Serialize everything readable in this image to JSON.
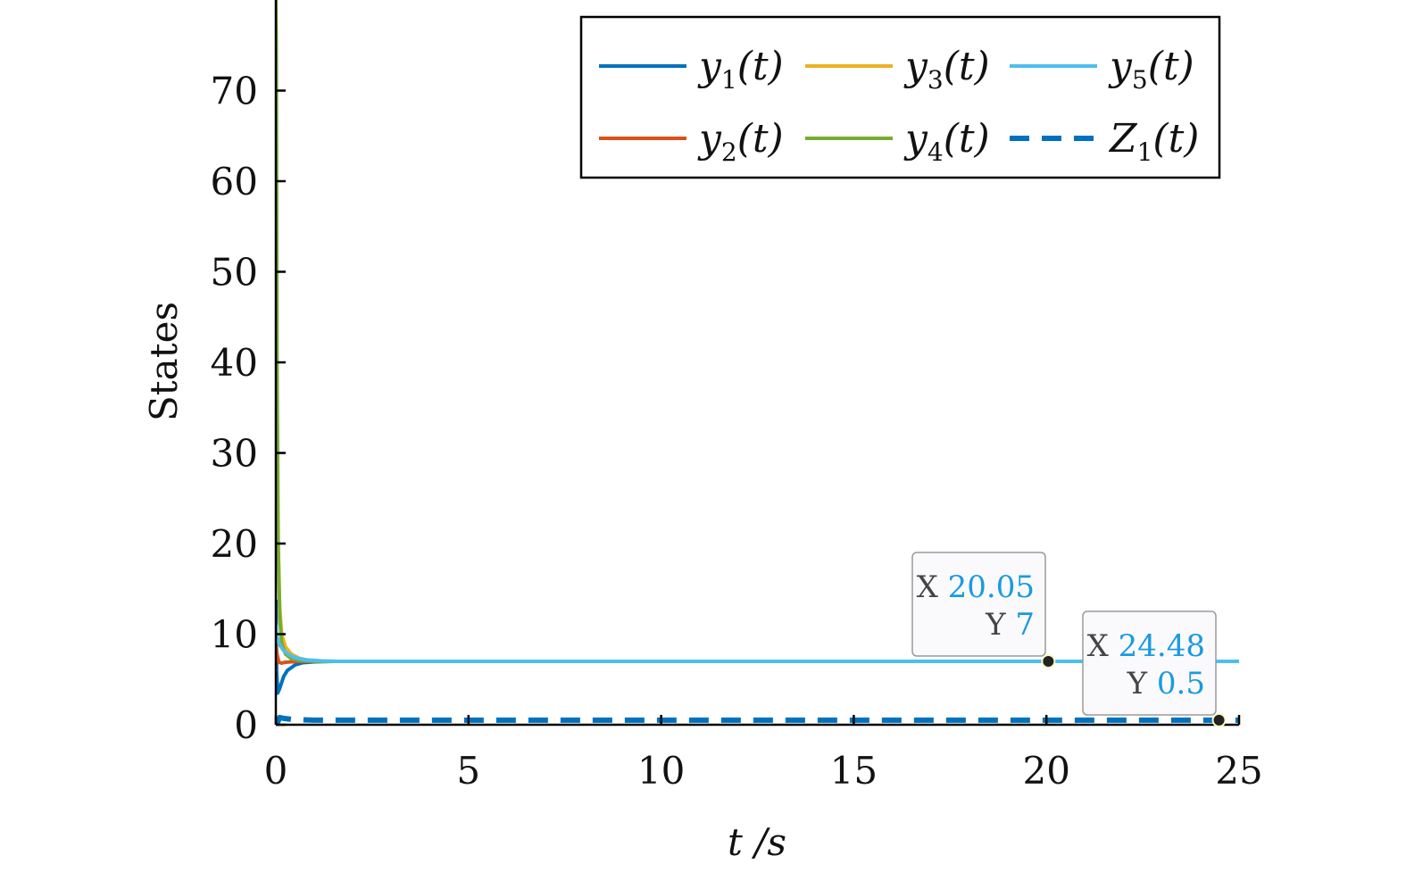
{
  "chart_data": {
    "type": "line",
    "xlabel": "t /s",
    "ylabel": "States",
    "xlim": [
      0,
      25
    ],
    "ylim": [
      0,
      80
    ],
    "xticks": [
      0,
      5,
      10,
      15,
      20,
      25
    ],
    "yticks": [
      0,
      10,
      20,
      30,
      40,
      50,
      60,
      70
    ],
    "xtick_labels": [
      "0",
      "5",
      "10",
      "15",
      "20",
      "25"
    ],
    "ytick_labels": [
      "0",
      "10",
      "20",
      "30",
      "40",
      "50",
      "60",
      "70"
    ],
    "grid": false,
    "legend_position": "top-right",
    "series": [
      {
        "name": "y1(t)",
        "label_base": "y",
        "label_sub": "1",
        "label_tail": "(t)",
        "color": "#0072BD",
        "dash": false,
        "x": [
          0,
          0.02,
          0.05,
          0.1,
          0.2,
          0.3,
          0.5,
          0.7,
          1.0,
          1.5,
          2,
          25
        ],
        "y": [
          13.8,
          6.0,
          3.5,
          4.0,
          5.3,
          6.0,
          6.6,
          6.85,
          6.95,
          7.0,
          7.0,
          7.0
        ]
      },
      {
        "name": "y2(t)",
        "label_base": "y",
        "label_sub": "2",
        "label_tail": "(t)",
        "color": "#D95319",
        "dash": false,
        "x": [
          0,
          0.03,
          0.08,
          0.15,
          0.25,
          0.4,
          0.6,
          1.0,
          1.5,
          25
        ],
        "y": [
          9.0,
          7.8,
          6.9,
          6.8,
          6.9,
          6.95,
          7.0,
          7.0,
          7.0,
          7.0
        ]
      },
      {
        "name": "y3(t)",
        "label_base": "y",
        "label_sub": "3",
        "label_tail": "(t)",
        "color": "#EDB120",
        "dash": false,
        "x": [
          0,
          0.02,
          0.05,
          0.1,
          0.15,
          0.25,
          0.4,
          0.6,
          0.8,
          1.0,
          1.5,
          25
        ],
        "y": [
          78,
          45,
          22,
          13,
          10,
          8.6,
          7.8,
          7.35,
          7.15,
          7.05,
          7.0,
          7.0
        ]
      },
      {
        "name": "y4(t)",
        "label_base": "y",
        "label_sub": "4",
        "label_tail": "(t)",
        "color": "#77AC30",
        "dash": false,
        "x": [
          0,
          0.01,
          0.03,
          0.06,
          0.1,
          0.15,
          0.25,
          0.4,
          0.6,
          1.0,
          1.5,
          25
        ],
        "y": [
          80,
          75,
          40,
          20,
          12,
          9.0,
          7.8,
          7.3,
          7.1,
          7.0,
          7.0,
          7.0
        ]
      },
      {
        "name": "y5(t)",
        "label_base": "y",
        "label_sub": "5",
        "label_tail": "(t)",
        "color": "#4DBEEE",
        "dash": false,
        "x": [
          0,
          0.02,
          0.05,
          0.1,
          0.2,
          0.35,
          0.5,
          0.8,
          1.2,
          1.6,
          25
        ],
        "y": [
          11.0,
          10.0,
          9.3,
          8.8,
          8.2,
          7.7,
          7.4,
          7.15,
          7.05,
          7.0,
          7.0
        ]
      },
      {
        "name": "Z1(t)",
        "label_base": "Z",
        "label_sub": "1",
        "label_tail": "(t)",
        "color": "#0072BD",
        "dash": true,
        "x": [
          0,
          0.05,
          0.1,
          0.2,
          0.4,
          0.7,
          1.0,
          25
        ],
        "y": [
          0.0,
          0.3,
          0.8,
          0.7,
          0.6,
          0.55,
          0.5,
          0.5
        ]
      }
    ],
    "datatips": [
      {
        "x_key": "X",
        "x_value": "20.05",
        "y_key": "Y",
        "y_value": "7",
        "x": 20.05,
        "y": 7
      },
      {
        "x_key": "X",
        "x_value": "24.48",
        "y_key": "Y",
        "y_value": "0.5",
        "x": 24.48,
        "y": 0.5
      }
    ]
  }
}
